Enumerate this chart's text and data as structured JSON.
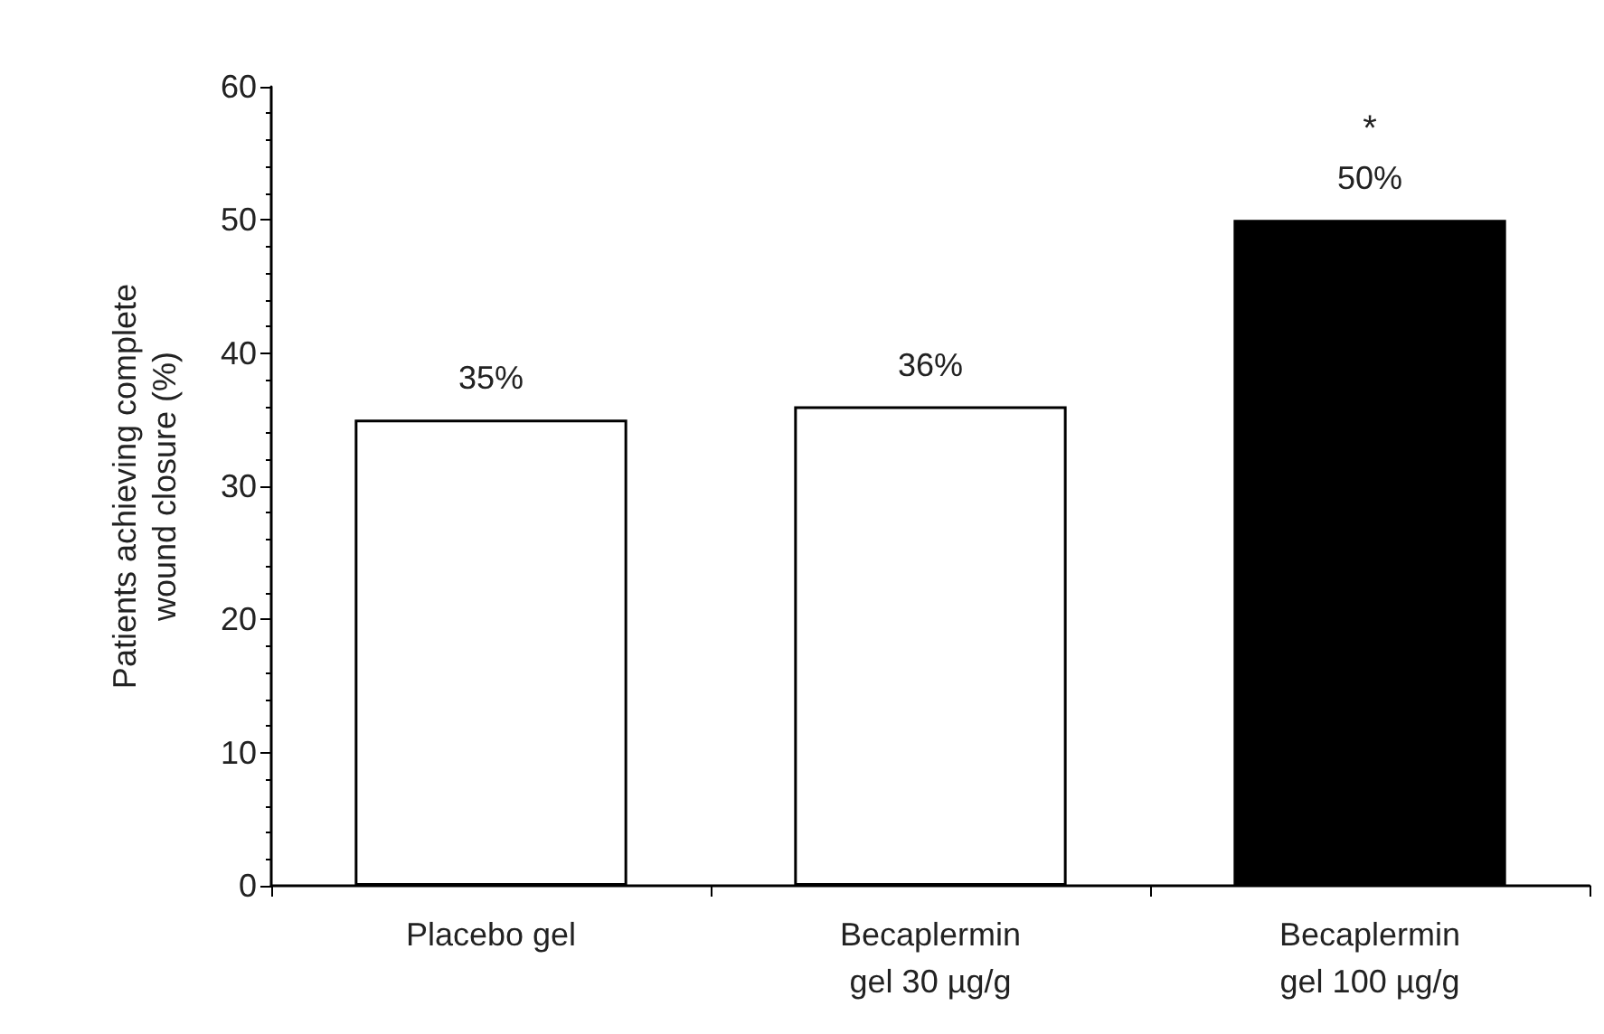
{
  "chart_data": {
    "type": "bar",
    "ylabel": "Patients achieving complete\nwound closure (%)",
    "categories": [
      "Placebo gel",
      "Becaplermin\ngel 30 µg/g",
      "Becaplermin\ngel 100 µg/g"
    ],
    "values": [
      35,
      36,
      50
    ],
    "colors": [
      "#ffffff",
      "#ffffff",
      "#000000"
    ],
    "value_labels": [
      "35%",
      "36%",
      "50%"
    ],
    "ylim": [
      0,
      60
    ],
    "yticks": [
      0,
      10,
      20,
      30,
      40,
      50,
      60
    ],
    "grid": false,
    "annotations": [
      "*"
    ]
  }
}
